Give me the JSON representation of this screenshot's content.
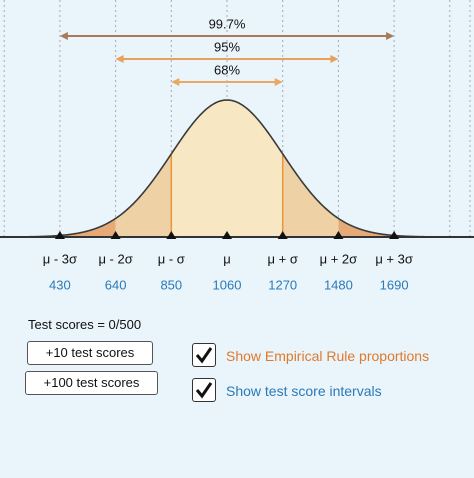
{
  "intervals": [
    {
      "label": "99.7%"
    },
    {
      "label": "95%"
    },
    {
      "label": "68%"
    }
  ],
  "axis": {
    "labels": [
      "μ - 3σ",
      "μ - 2σ",
      "μ - σ",
      "μ",
      "μ + σ",
      "μ + 2σ",
      "μ + 3σ"
    ],
    "values": [
      430,
      640,
      850,
      1060,
      1270,
      1480,
      1690
    ]
  },
  "test_scores": "Test scores = 0/500",
  "buttons": [
    {
      "label": "+10 test scores"
    },
    {
      "label": "+100 test scores"
    }
  ],
  "checkboxes": [
    {
      "label": "Show Empirical Rule proportions",
      "checked": true
    },
    {
      "label": "Show test score intervals",
      "checked": true
    }
  ]
}
